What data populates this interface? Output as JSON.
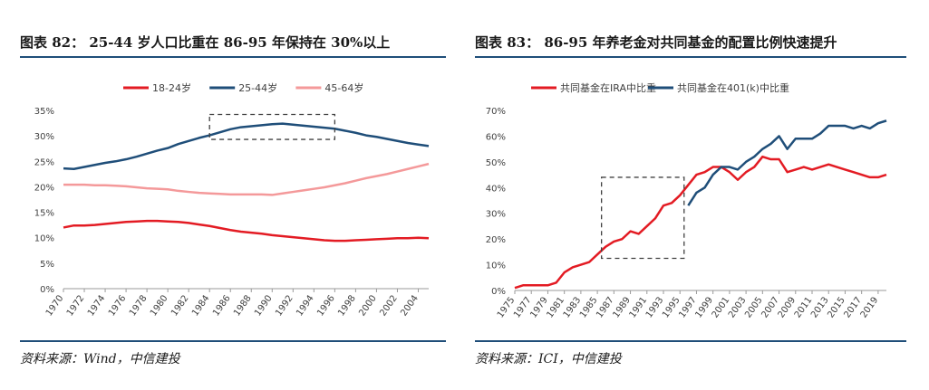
{
  "left": {
    "title": "图表 82： 25-44 岁人口比重在 86-95 年保持在 30%以上",
    "source": "资料来源：Wind，中信建投",
    "chart_data": {
      "type": "line",
      "title": "",
      "x": [
        1970,
        1971,
        1972,
        1973,
        1974,
        1975,
        1976,
        1977,
        1978,
        1979,
        1980,
        1981,
        1982,
        1983,
        1984,
        1985,
        1986,
        1987,
        1988,
        1989,
        1990,
        1991,
        1992,
        1993,
        1994,
        1995,
        1996,
        1997,
        1998,
        1999,
        2000,
        2001,
        2002,
        2003,
        2004,
        2005
      ],
      "x_tick_labels": [
        "1970",
        "1972",
        "1974",
        "1976",
        "1978",
        "1980",
        "1982",
        "1984",
        "1986",
        "1988",
        "1990",
        "1992",
        "1994",
        "1996",
        "1998",
        "2000",
        "2002",
        "2004"
      ],
      "ylim": [
        0,
        35
      ],
      "y_tick_labels": [
        "0%",
        "5%",
        "10%",
        "15%",
        "20%",
        "25%",
        "30%",
        "35%"
      ],
      "y_tick_values": [
        0,
        5,
        10,
        15,
        20,
        25,
        30,
        35
      ],
      "series": [
        {
          "name": "18-24岁",
          "color": "#e31b23",
          "values": [
            12.0,
            12.4,
            12.4,
            12.5,
            12.7,
            12.9,
            13.1,
            13.2,
            13.3,
            13.3,
            13.2,
            13.1,
            12.9,
            12.6,
            12.3,
            11.9,
            11.5,
            11.2,
            11.0,
            10.8,
            10.5,
            10.3,
            10.1,
            9.9,
            9.7,
            9.5,
            9.4,
            9.4,
            9.5,
            9.6,
            9.7,
            9.8,
            9.9,
            9.9,
            10.0,
            9.9
          ]
        },
        {
          "name": "25-44岁",
          "color": "#1f4e79",
          "values": [
            23.6,
            23.5,
            23.9,
            24.3,
            24.7,
            25.0,
            25.4,
            25.9,
            26.5,
            27.1,
            27.6,
            28.4,
            29.0,
            29.6,
            30.1,
            30.7,
            31.3,
            31.7,
            31.9,
            32.1,
            32.3,
            32.4,
            32.2,
            32.0,
            31.8,
            31.6,
            31.4,
            31.0,
            30.6,
            30.1,
            29.8,
            29.4,
            29.0,
            28.6,
            28.3,
            28.0
          ]
        },
        {
          "name": "45-64岁",
          "color": "#f4999a",
          "values": [
            20.4,
            20.4,
            20.4,
            20.3,
            20.3,
            20.2,
            20.1,
            19.9,
            19.7,
            19.6,
            19.5,
            19.2,
            19.0,
            18.8,
            18.7,
            18.6,
            18.5,
            18.5,
            18.5,
            18.5,
            18.4,
            18.7,
            19.0,
            19.3,
            19.6,
            19.9,
            20.3,
            20.7,
            21.2,
            21.7,
            22.1,
            22.5,
            23.0,
            23.5,
            24.0,
            24.5
          ]
        }
      ],
      "annotation_box": {
        "x0": 1984,
        "x1": 1996,
        "y0": 29.3,
        "y1": 34.2
      },
      "legend_position": "top"
    }
  },
  "right": {
    "title": "图表 83： 86-95 年养老金对共同基金的配置比例快速提升",
    "source": "资料来源：ICI，中信建投",
    "chart_data": {
      "type": "line",
      "title": "",
      "x": [
        1975,
        1976,
        1977,
        1978,
        1979,
        1980,
        1981,
        1982,
        1983,
        1984,
        1985,
        1986,
        1987,
        1988,
        1989,
        1990,
        1991,
        1992,
        1993,
        1994,
        1995,
        1996,
        1997,
        1998,
        1999,
        2000,
        2001,
        2002,
        2003,
        2004,
        2005,
        2006,
        2007,
        2008,
        2009,
        2010,
        2011,
        2012,
        2013,
        2014,
        2015,
        2016,
        2017,
        2018,
        2019,
        2020
      ],
      "x_tick_labels": [
        "1975",
        "1977",
        "1979",
        "1981",
        "1983",
        "1985",
        "1987",
        "1989",
        "1991",
        "1993",
        "1995",
        "1997",
        "1999",
        "2001",
        "2003",
        "2005",
        "2007",
        "2009",
        "2011",
        "2013",
        "2015",
        "2017",
        "2019"
      ],
      "ylim": [
        0,
        70
      ],
      "y_tick_labels": [
        "0%",
        "10%",
        "20%",
        "30%",
        "40%",
        "50%",
        "60%",
        "70%"
      ],
      "y_tick_values": [
        0,
        10,
        20,
        30,
        40,
        50,
        60,
        70
      ],
      "series": [
        {
          "name": "共同基金在IRA中比重",
          "color": "#e31b23",
          "values": [
            1,
            2,
            2,
            2,
            2,
            3,
            7,
            9,
            10,
            11,
            14,
            17,
            19,
            20,
            23,
            22,
            25,
            28,
            33,
            34,
            37,
            41,
            45,
            46,
            48,
            48,
            46,
            43,
            46,
            48,
            52,
            51,
            51,
            46,
            47,
            48,
            47,
            48,
            49,
            48,
            47,
            46,
            45,
            44,
            44,
            45
          ]
        },
        {
          "name": "共同基金在401(k)中比重",
          "color": "#1f4e79",
          "values": [
            null,
            null,
            null,
            null,
            null,
            null,
            null,
            null,
            null,
            null,
            null,
            null,
            null,
            null,
            null,
            null,
            null,
            null,
            null,
            null,
            null,
            33,
            38,
            40,
            45,
            48,
            48,
            47,
            50,
            52,
            55,
            57,
            60,
            55,
            59,
            59,
            59,
            61,
            64,
            64,
            64,
            63,
            64,
            63,
            65,
            66
          ]
        }
      ],
      "annotation_box": {
        "x0": 1985.5,
        "x1": 1995.5,
        "y0": 12.5,
        "y1": 44
      },
      "legend_position": "top"
    }
  }
}
